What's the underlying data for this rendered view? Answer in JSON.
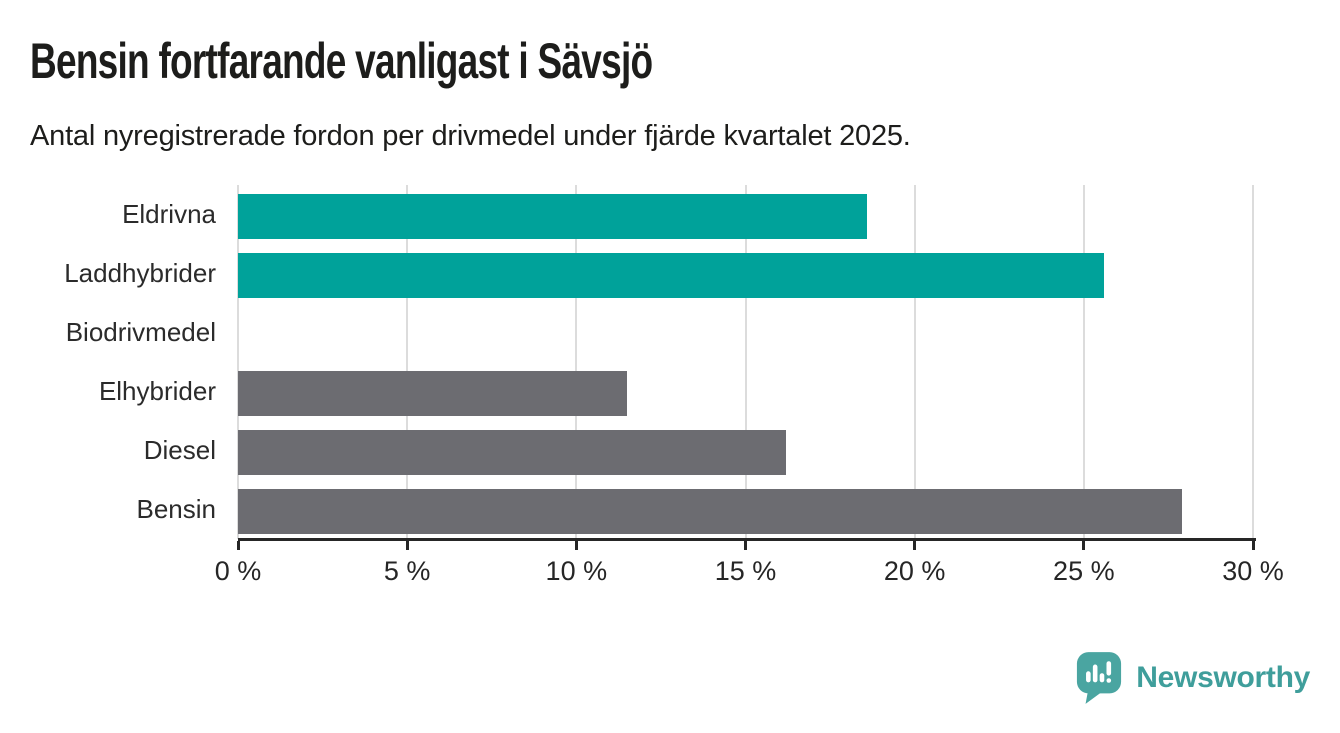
{
  "header": {
    "title": "Bensin fortfarande vanligast i Sävsjö",
    "subtitle": "Antal nyregistrerade fordon per drivmedel under fjärde kvartalet 2025."
  },
  "chart_data": {
    "type": "bar",
    "orientation": "horizontal",
    "title": "Bensin fortfarande vanligast i Sävsjö",
    "subtitle": "Antal nyregistrerade fordon per drivmedel under fjärde kvartalet 2025.",
    "categories": [
      "Eldrivna",
      "Laddhybrider",
      "Biodrivmedel",
      "Elhybrider",
      "Diesel",
      "Bensin"
    ],
    "values": [
      18.6,
      25.6,
      0,
      11.5,
      16.2,
      27.9
    ],
    "unit": "%",
    "bar_colors": [
      "#00a29a",
      "#00a29a",
      "#6c6c71",
      "#6c6c71",
      "#6c6c71",
      "#6c6c71"
    ],
    "xlim": [
      0,
      30
    ],
    "x_ticks": [
      0,
      5,
      10,
      15,
      20,
      25,
      30
    ],
    "x_tick_labels": [
      "0 %",
      "5 %",
      "10 %",
      "15 %",
      "20 %",
      "25 %",
      "30 %"
    ],
    "grid": "vertical",
    "legend": "none",
    "xlabel": "",
    "ylabel": ""
  },
  "branding": {
    "logo_text": "Newsworthy",
    "logo_icon": "newsworthy-speech-bubble-bar-chart-icon"
  },
  "colors": {
    "teal_bar": "#00a29a",
    "gray_bar": "#6c6c71",
    "axis": "#262626",
    "gridline": "#dcdcdc",
    "tick_label": "#262626",
    "category_label": "#2b2b2b",
    "heading_text": "#1d1d1b",
    "logo_icon": "#4aa5a1",
    "logo_text": "#3f9e9b"
  }
}
